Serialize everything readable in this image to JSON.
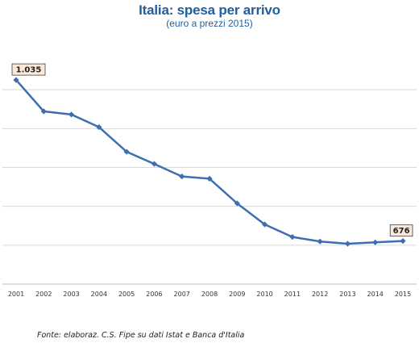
{
  "chart_data": {
    "type": "line",
    "title": "Italia: spesa per arrivo",
    "subtitle": "(euro a prezzi 2015)",
    "x": [
      "2001",
      "2002",
      "2003",
      "2004",
      "2005",
      "2006",
      "2007",
      "2008",
      "2009",
      "2010",
      "2011",
      "2012",
      "2013",
      "2014",
      "2015"
    ],
    "series": [
      {
        "values": [
          1035,
          965,
          958,
          930,
          875,
          848,
          820,
          815,
          760,
          713,
          685,
          675,
          670,
          673,
          676
        ]
      }
    ],
    "data_labels": [
      {
        "x": "2001",
        "text": "1.035"
      },
      {
        "x": "2015",
        "text": "676"
      }
    ],
    "ylim": [
      580,
      1100
    ],
    "grid": true,
    "legend": "none",
    "colors": {
      "line": "#3d6eb0",
      "grid": "#d9d9d9",
      "title": "#1f5f9e",
      "label_bg": "#fbe8d8"
    }
  },
  "source": "Fonte:  elaboraz. C.S. Fipe su dati Istat e Banca d'Italia"
}
